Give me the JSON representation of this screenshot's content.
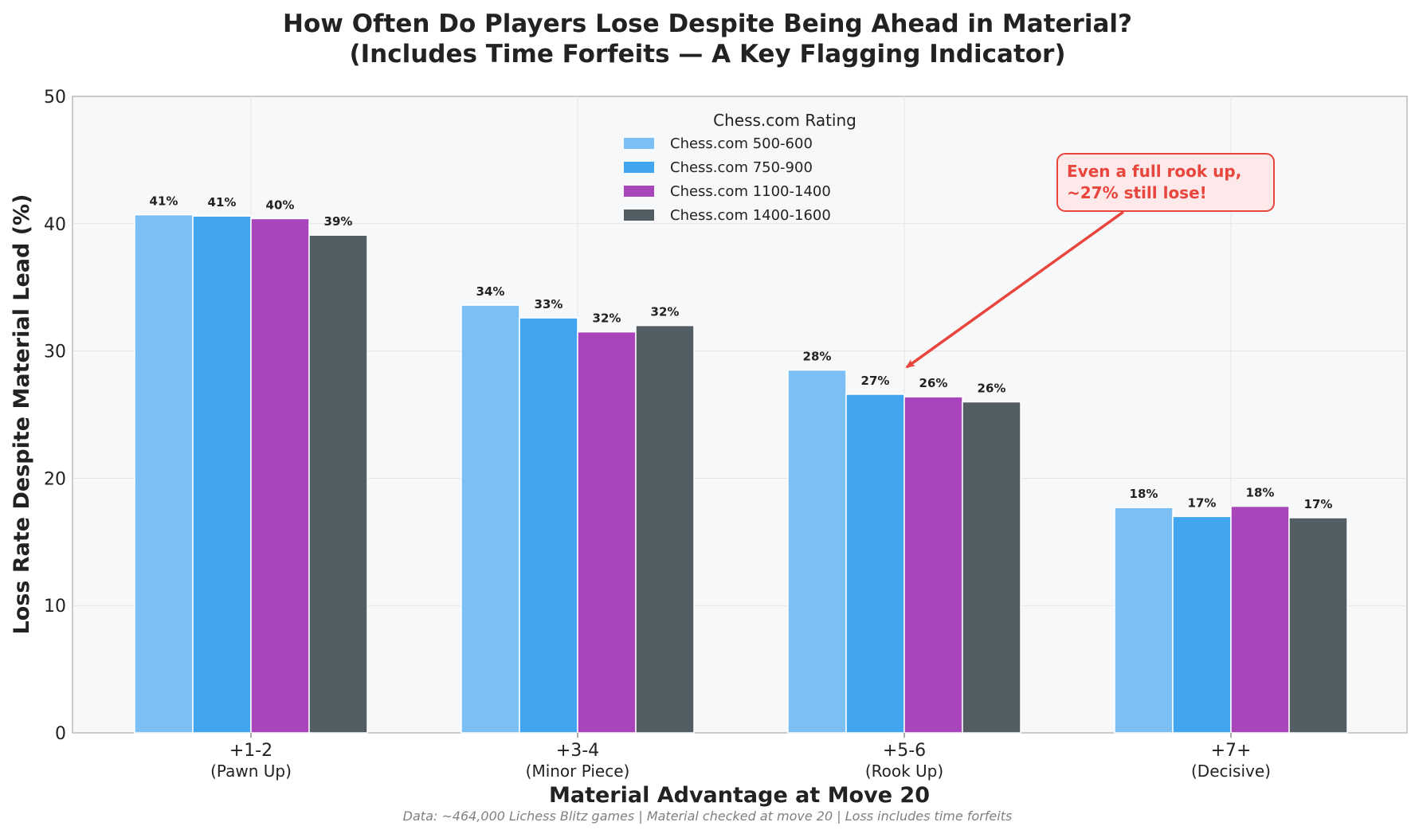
{
  "chart_data": {
    "type": "bar",
    "title": "How Often Do Players Lose Despite Being Ahead in Material?",
    "subtitle": "(Includes Time Forfeits — A Key Flagging Indicator)",
    "xlabel": "Material Advantage at Move 20",
    "ylabel": "Loss Rate Despite Material Lead (%)",
    "ylim": [
      0,
      50
    ],
    "yticks": [
      "0",
      "10",
      "20",
      "30",
      "40",
      "50"
    ],
    "grid": true,
    "legend_position": "top-center",
    "legend_title": "Chess.com Rating",
    "categories": [
      {
        "main": "+1-2",
        "sub": "(Pawn Up)"
      },
      {
        "main": "+3-4",
        "sub": "(Minor Piece)"
      },
      {
        "main": "+5-6",
        "sub": "(Rook Up)"
      },
      {
        "main": "+7+",
        "sub": "(Decisive)"
      }
    ],
    "series": [
      {
        "name": "Chess.com 500-600",
        "color": "#7bbff5",
        "values": [
          40.7,
          33.6,
          28.5,
          17.7
        ],
        "labels": [
          "41%",
          "34%",
          "28%",
          "18%"
        ]
      },
      {
        "name": "Chess.com 750-900",
        "color": "#42a5f0",
        "values": [
          40.6,
          32.6,
          26.6,
          17.0
        ],
        "labels": [
          "41%",
          "33%",
          "27%",
          "17%"
        ]
      },
      {
        "name": "Chess.com 1100-1400",
        "color": "#a845bb",
        "values": [
          40.4,
          31.5,
          26.4,
          17.8
        ],
        "labels": [
          "40%",
          "32%",
          "26%",
          "18%"
        ]
      },
      {
        "name": "Chess.com 1400-1600",
        "color": "#525e64",
        "values": [
          39.1,
          32.0,
          26.0,
          16.9
        ],
        "labels": [
          "39%",
          "32%",
          "26%",
          "17%"
        ]
      }
    ],
    "annotation": {
      "lines": [
        "Even a full rook up,",
        "~27% still lose!"
      ],
      "color": "#e8453c",
      "background": "#fde8ea",
      "target_category": 2,
      "target_value": 28.5
    },
    "footnote": "Data: ~464,000 Lichess Blitz games | Material checked at move 20 | Loss includes time forfeits"
  }
}
